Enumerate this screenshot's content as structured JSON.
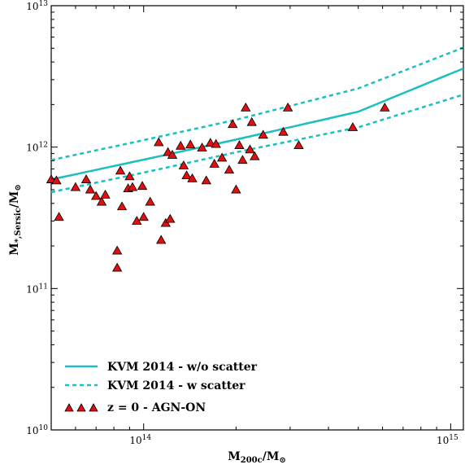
{
  "chart_data": {
    "type": "scatter",
    "xlabel": "M200c/M⊙",
    "ylabel": "M*,Sersic/M⊙",
    "xscale": "log",
    "yscale": "log",
    "xlim": [
      50000000000000.0,
      1100000000000000.0
    ],
    "ylim": [
      10000000000.0,
      10000000000000.0
    ],
    "x_ticks": [
      {
        "value": 100000000000000.0,
        "label": "10",
        "exp": "14"
      },
      {
        "value": 1000000000000000.0,
        "label": "10",
        "exp": "15"
      }
    ],
    "y_ticks": [
      {
        "value": 10000000000.0,
        "label": "10",
        "exp": "10"
      },
      {
        "value": 100000000000.0,
        "label": "10",
        "exp": "11"
      },
      {
        "value": 1000000000000.0,
        "label": "10",
        "exp": "12"
      },
      {
        "value": 10000000000000.0,
        "label": "10",
        "exp": "13"
      }
    ],
    "grid": false,
    "legend_position": "lower-left",
    "colors": {
      "line": "#1cbfbf",
      "marker_fill": "#e01010",
      "marker_edge": "#000000"
    },
    "lines": [
      {
        "name": "KVM 2014 - w/o scatter",
        "style": "solid",
        "x": [
          50000000000000.0,
          100000000000000.0,
          200000000000000.0,
          500000000000000.0,
          1100000000000000.0
        ],
        "y": [
          590000000000.0,
          815000000000.0,
          1130000000000.0,
          1780000000000.0,
          3600000000000.0
        ]
      },
      {
        "name": "KVM 2014 - w scatter",
        "style": "dashed",
        "x": [
          50000000000000.0,
          100000000000000.0,
          200000000000000.0,
          500000000000000.0,
          1100000000000000.0
        ],
        "y": [
          810000000000.0,
          1120000000000.0,
          1560000000000.0,
          2600000000000.0,
          5050000000000.0
        ]
      },
      {
        "name": "",
        "style": "dashed",
        "x": [
          50000000000000.0,
          100000000000000.0,
          200000000000000.0,
          500000000000000.0,
          1100000000000000.0
        ],
        "y": [
          480000000000.0,
          660000000000.0,
          920000000000.0,
          1380000000000.0,
          2350000000000.0
        ]
      }
    ],
    "scatter": {
      "name": "z = 0 - AGN-ON",
      "x": [
        50000000000000.0,
        53000000000000.0,
        52000000000000.0,
        60000000000000.0,
        65000000000000.0,
        67000000000000.0,
        70000000000000.0,
        73000000000000.0,
        75000000000000.0,
        82000000000000.0,
        85000000000000.0,
        82000000000000.0,
        84000000000000.0,
        89000000000000.0,
        90000000000000.0,
        92000000000000.0,
        95000000000000.0,
        99000000000000.0,
        100000000000000.0,
        105000000000000.0,
        112000000000000.0,
        114000000000000.0,
        118000000000000.0,
        120000000000000.0,
        122000000000000.0,
        124000000000000.0,
        132000000000000.0,
        135000000000000.0,
        138000000000000.0,
        142000000000000.0,
        144000000000000.0,
        155000000000000.0,
        160000000000000.0,
        165000000000000.0,
        170000000000000.0,
        172000000000000.0,
        180000000000000.0,
        190000000000000.0,
        195000000000000.0,
        200000000000000.0,
        205000000000000.0,
        210000000000000.0,
        215000000000000.0,
        222000000000000.0,
        225000000000000.0,
        230000000000000.0,
        245000000000000.0,
        285000000000000.0,
        295000000000000.0,
        320000000000000.0,
        480000000000000.0,
        610000000000000.0
      ],
      "y": [
        590000000000.0,
        320000000000.0,
        580000000000.0,
        520000000000.0,
        590000000000.0,
        500000000000.0,
        450000000000.0,
        410000000000.0,
        460000000000.0,
        185000000000.0,
        380000000000.0,
        140000000000.0,
        680000000000.0,
        510000000000.0,
        620000000000.0,
        520000000000.0,
        300000000000.0,
        530000000000.0,
        320000000000.0,
        410000000000.0,
        1080000000000.0,
        220000000000.0,
        290000000000.0,
        920000000000.0,
        310000000000.0,
        880000000000.0,
        1020000000000.0,
        740000000000.0,
        630000000000.0,
        1040000000000.0,
        600000000000.0,
        990000000000.0,
        580000000000.0,
        1070000000000.0,
        760000000000.0,
        1050000000000.0,
        840000000000.0,
        690000000000.0,
        1450000000000.0,
        500000000000.0,
        1030000000000.0,
        810000000000.0,
        1900000000000.0,
        960000000000.0,
        1500000000000.0,
        860000000000.0,
        1220000000000.0,
        1280000000000.0,
        1900000000000.0,
        1030000000000.0,
        1380000000000.0,
        1900000000000.0
      ]
    }
  }
}
